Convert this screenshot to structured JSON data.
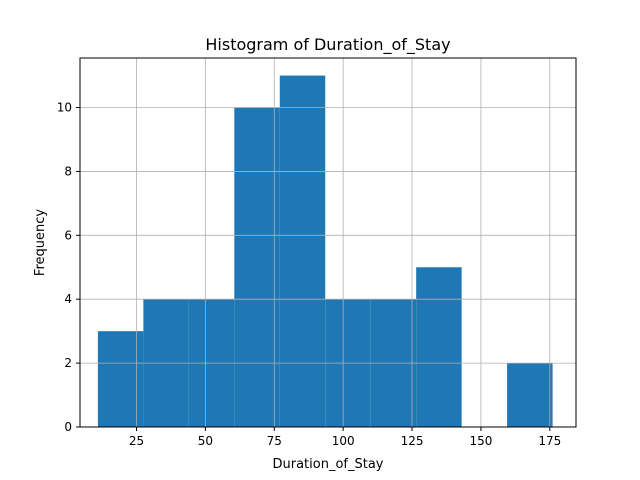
{
  "chart_data": {
    "type": "bar",
    "title": "Histogram of Duration_of_Stay",
    "xlabel": "Duration_of_Stay",
    "ylabel": "Frequency",
    "xlim": [
      4.5,
      184.5
    ],
    "ylim": [
      0,
      11.55
    ],
    "grid": true,
    "bar_color": "#1f77b4",
    "bins": [
      {
        "start": 11,
        "end": 27.5,
        "count": 3
      },
      {
        "start": 27.5,
        "end": 44,
        "count": 4
      },
      {
        "start": 44,
        "end": 60.5,
        "count": 4
      },
      {
        "start": 60.5,
        "end": 77,
        "count": 10
      },
      {
        "start": 77,
        "end": 93.5,
        "count": 11
      },
      {
        "start": 93.5,
        "end": 110,
        "count": 4
      },
      {
        "start": 110,
        "end": 126.5,
        "count": 4
      },
      {
        "start": 126.5,
        "end": 143,
        "count": 5
      },
      {
        "start": 143,
        "end": 159.5,
        "count": 0
      },
      {
        "start": 159.5,
        "end": 176,
        "count": 2
      }
    ],
    "x_ticks": [
      25,
      50,
      75,
      100,
      125,
      150,
      175
    ],
    "y_ticks": [
      0,
      2,
      4,
      6,
      8,
      10
    ]
  }
}
